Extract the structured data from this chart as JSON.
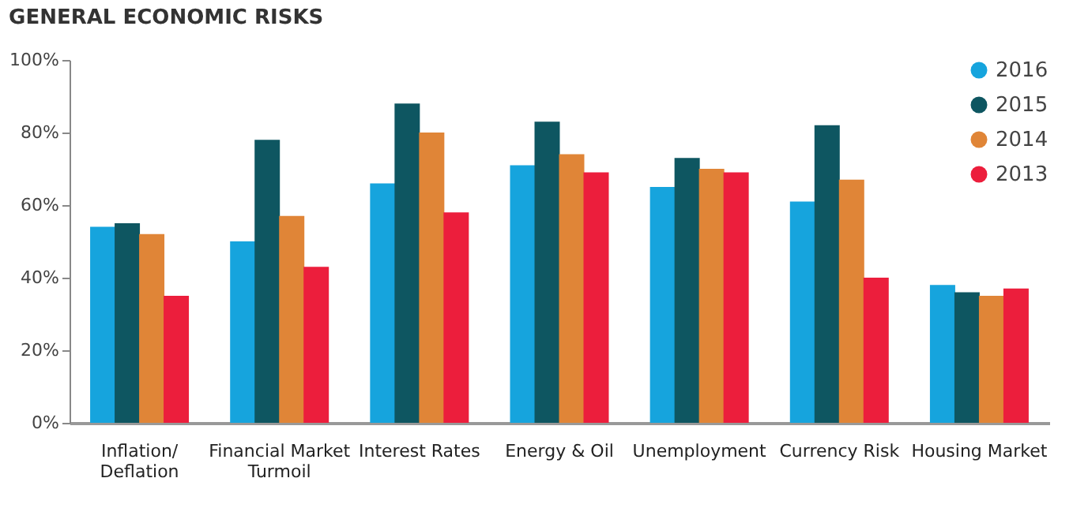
{
  "chart_data": {
    "type": "bar",
    "title": "GENERAL ECONOMIC RISKS",
    "categories": [
      "Inflation/\nDeflation",
      "Financial Market\nTurmoil",
      "Interest Rates",
      "Energy & Oil",
      "Unemployment",
      "Currency Risk",
      "Housing Market"
    ],
    "series": [
      {
        "name": "2016",
        "color": "#16a4dd",
        "values": [
          54,
          50,
          66,
          71,
          65,
          61,
          38
        ]
      },
      {
        "name": "2015",
        "color": "#0e5661",
        "values": [
          55,
          78,
          88,
          83,
          73,
          82,
          36
        ]
      },
      {
        "name": "2014",
        "color": "#e08537",
        "values": [
          52,
          57,
          80,
          74,
          70,
          67,
          35
        ]
      },
      {
        "name": "2013",
        "color": "#ec1e3c",
        "values": [
          35,
          43,
          58,
          69,
          69,
          40,
          37
        ]
      }
    ],
    "ylim": [
      0,
      100
    ],
    "yticks": [
      {
        "value": 0,
        "label": "0%"
      },
      {
        "value": 20,
        "label": "20%"
      },
      {
        "value": 40,
        "label": "40%"
      },
      {
        "value": 60,
        "label": "60%"
      },
      {
        "value": 80,
        "label": "80%"
      },
      {
        "value": 100,
        "label": "100%"
      }
    ],
    "grid": false,
    "legend": "top right"
  }
}
